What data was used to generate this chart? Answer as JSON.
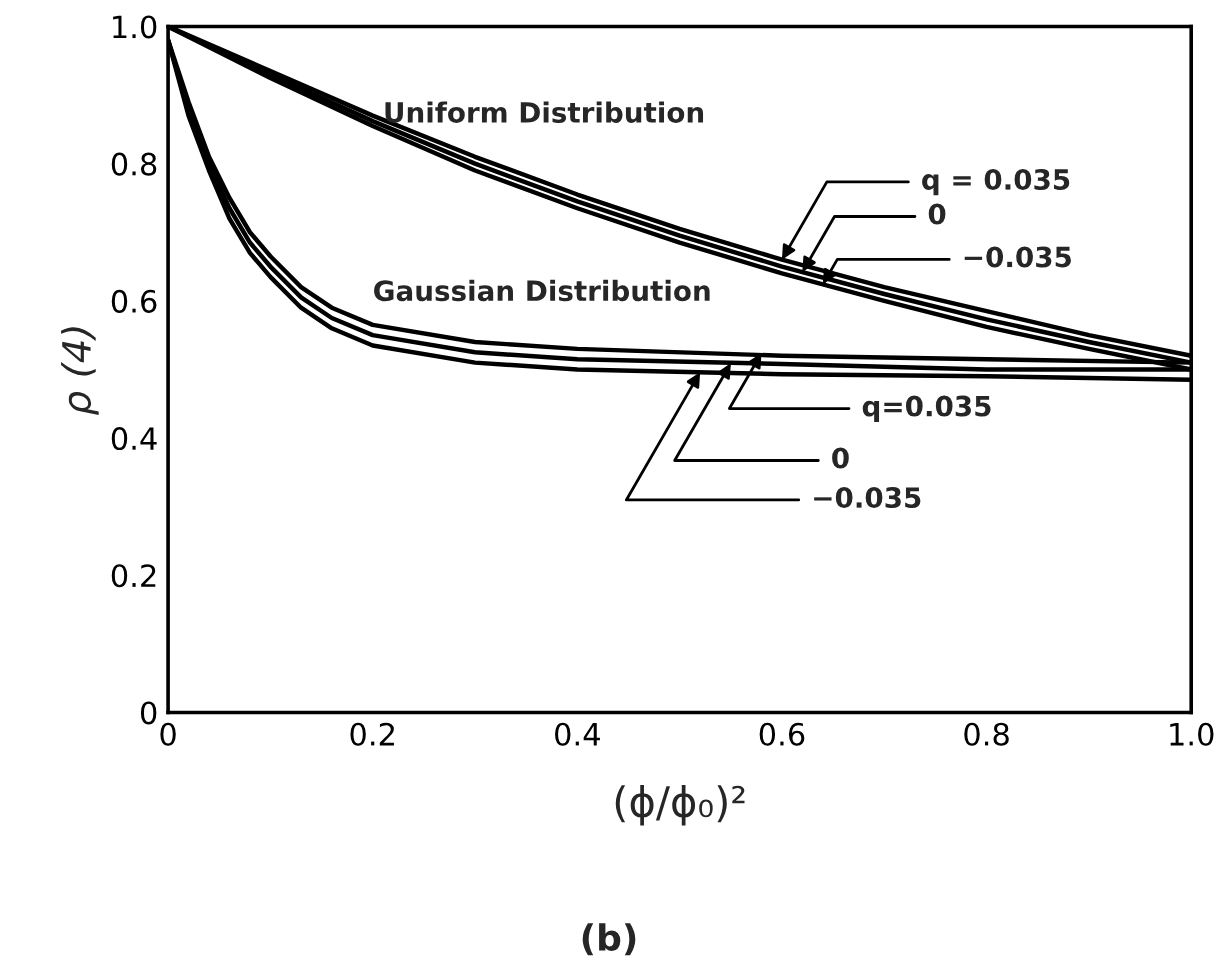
{
  "chart_data": {
    "type": "line",
    "xlabel": "(ϕ/ϕ₀)²",
    "ylabel": "ρ (4)",
    "xlim": [
      0,
      1.0
    ],
    "ylim": [
      0,
      1.0
    ],
    "xticks": [
      0,
      0.2,
      0.4,
      0.6,
      0.8,
      {
        "value": 1.0,
        "label": "1.0"
      }
    ],
    "yticks": [
      0,
      0.2,
      0.4,
      0.6,
      0.8,
      {
        "value": 1.0,
        "label": "1.0"
      }
    ],
    "grid": false,
    "marker": "none",
    "line_style": "solid",
    "series": [
      {
        "color": "#000000",
        "x": [
          0,
          0.1,
          0.2,
          0.3,
          0.4,
          0.5,
          0.6,
          0.7,
          0.8,
          0.9,
          1.0
        ],
        "values": [
          1.0,
          0.935,
          0.87,
          0.81,
          0.755,
          0.705,
          0.66,
          0.62,
          0.585,
          0.55,
          0.52
        ]
      },
      {
        "color": "#000000",
        "x": [
          0,
          0.1,
          0.2,
          0.3,
          0.4,
          0.5,
          0.6,
          0.7,
          0.8,
          0.9,
          1.0
        ],
        "values": [
          1.0,
          0.93,
          0.862,
          0.8,
          0.745,
          0.695,
          0.65,
          0.61,
          0.573,
          0.54,
          0.51
        ]
      },
      {
        "color": "#000000",
        "x": [
          0,
          0.1,
          0.2,
          0.3,
          0.4,
          0.5,
          0.6,
          0.7,
          0.8,
          0.9,
          1.0
        ],
        "values": [
          1.0,
          0.925,
          0.855,
          0.79,
          0.735,
          0.685,
          0.64,
          0.6,
          0.562,
          0.53,
          0.5
        ]
      },
      {
        "color": "#000000",
        "x": [
          0,
          0.01,
          0.02,
          0.04,
          0.06,
          0.08,
          0.1,
          0.13,
          0.16,
          0.2,
          0.3,
          0.4,
          0.6,
          0.8,
          1.0
        ],
        "values": [
          0.98,
          0.935,
          0.89,
          0.81,
          0.75,
          0.7,
          0.665,
          0.62,
          0.59,
          0.565,
          0.54,
          0.53,
          0.52,
          0.515,
          0.51
        ]
      },
      {
        "color": "#000000",
        "x": [
          0,
          0.01,
          0.02,
          0.04,
          0.06,
          0.08,
          0.1,
          0.13,
          0.16,
          0.2,
          0.3,
          0.4,
          0.6,
          0.8,
          1.0
        ],
        "values": [
          0.98,
          0.93,
          0.88,
          0.8,
          0.735,
          0.685,
          0.65,
          0.605,
          0.575,
          0.55,
          0.525,
          0.515,
          0.508,
          0.5,
          0.5
        ]
      },
      {
        "color": "#000000",
        "x": [
          0,
          0.01,
          0.02,
          0.04,
          0.06,
          0.08,
          0.1,
          0.13,
          0.16,
          0.2,
          0.3,
          0.4,
          0.6,
          0.8,
          1.0
        ],
        "values": [
          0.98,
          0.925,
          0.87,
          0.79,
          0.72,
          0.67,
          0.635,
          0.59,
          0.56,
          0.535,
          0.51,
          0.5,
          0.493,
          0.49,
          0.485
        ]
      }
    ],
    "annotations": [
      "Uniform Distribution",
      {
        "text": "q = 0.035",
        "x": 0.6,
        "y": 0.66
      },
      {
        "text": "0",
        "x": 0.62,
        "y": 0.642
      },
      {
        "text": "−0.035",
        "x": 0.64,
        "y": 0.624
      },
      "Gaussian Distribution",
      {
        "text": "q=0.035",
        "x": 0.58,
        "y": 0.524
      },
      {
        "text": "0",
        "x": 0.55,
        "y": 0.509
      },
      {
        "text": "−0.035",
        "x": 0.52,
        "y": 0.496
      },
      "(b)"
    ]
  }
}
